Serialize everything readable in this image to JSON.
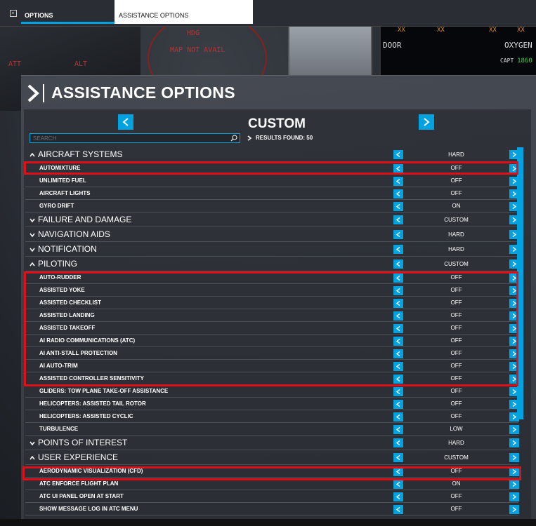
{
  "topbar": {
    "tab_options": "OPTIONS",
    "tab_assistance": "ASSISTANCE OPTIONS"
  },
  "background": {
    "hdg": "HDG",
    "map_not_avail": "MAP NOT AVAIL",
    "att": "ATT",
    "alt": "ALT",
    "door": "DOOR",
    "oxygen": "OXYGEN",
    "capt": "CAPT",
    "capt_value": "1860",
    "xx": "XX"
  },
  "panel": {
    "title": "ASSISTANCE OPTIONS",
    "preset": "CUSTOM",
    "search_placeholder": "SEARCH",
    "results_found": "RESULTS FOUND: 50"
  },
  "rows": [
    {
      "type": "cat",
      "expanded": true,
      "label": "AIRCRAFT SYSTEMS",
      "value": "HARD"
    },
    {
      "type": "item",
      "label": "AUTOMIXTURE",
      "value": "OFF"
    },
    {
      "type": "item",
      "label": "UNLIMITED FUEL",
      "value": "OFF"
    },
    {
      "type": "item",
      "label": "AIRCRAFT LIGHTS",
      "value": "OFF"
    },
    {
      "type": "item",
      "label": "GYRO DRIFT",
      "value": "ON"
    },
    {
      "type": "cat",
      "expanded": false,
      "label": "FAILURE AND DAMAGE",
      "value": "CUSTOM"
    },
    {
      "type": "cat",
      "expanded": false,
      "label": "NAVIGATION AIDS",
      "value": "HARD"
    },
    {
      "type": "cat",
      "expanded": false,
      "label": "NOTIFICATION",
      "value": "HARD"
    },
    {
      "type": "cat",
      "expanded": true,
      "label": "PILOTING",
      "value": "CUSTOM"
    },
    {
      "type": "item",
      "label": "AUTO-RUDDER",
      "value": "OFF"
    },
    {
      "type": "item",
      "label": "ASSISTED YOKE",
      "value": "OFF"
    },
    {
      "type": "item",
      "label": "ASSISTED CHECKLIST",
      "value": "OFF"
    },
    {
      "type": "item",
      "label": "ASSISTED LANDING",
      "value": "OFF"
    },
    {
      "type": "item",
      "label": "ASSISTED TAKEOFF",
      "value": "OFF"
    },
    {
      "type": "item",
      "label": "AI RADIO COMMUNICATIONS (ATC)",
      "value": "OFF"
    },
    {
      "type": "item",
      "label": "AI ANTI-STALL PROTECTION",
      "value": "OFF"
    },
    {
      "type": "item",
      "label": "AI AUTO-TRIM",
      "value": "OFF"
    },
    {
      "type": "item",
      "label": "ASSISTED CONTROLLER SENSITIVITY",
      "value": "OFF"
    },
    {
      "type": "item",
      "label": "GLIDERS: TOW PLANE TAKE-OFF ASSISTANCE",
      "value": "OFF"
    },
    {
      "type": "item",
      "label": "HELICOPTERS: ASSISTED TAIL ROTOR",
      "value": "OFF"
    },
    {
      "type": "item",
      "label": "HELICOPTERS: ASSISTED CYCLIC",
      "value": "OFF"
    },
    {
      "type": "item",
      "label": "TURBULENCE",
      "value": "LOW"
    },
    {
      "type": "cat",
      "expanded": false,
      "label": "POINTS OF INTEREST",
      "value": "HARD"
    },
    {
      "type": "cat",
      "expanded": true,
      "label": "USER EXPERIENCE",
      "value": "CUSTOM"
    },
    {
      "type": "item",
      "label": "AERODYNAMIC VISUALIZATION (CFD)",
      "value": "OFF"
    },
    {
      "type": "item",
      "label": "ATC ENFORCE FLIGHT PLAN",
      "value": "ON"
    },
    {
      "type": "item",
      "label": "ATC UI PANEL OPEN AT START",
      "value": "OFF"
    },
    {
      "type": "item",
      "label": "SHOW MESSAGE LOG IN ATC MENU",
      "value": "OFF"
    }
  ],
  "colors": {
    "accent": "#00a3e0",
    "highlight_box": "#e0101a"
  }
}
